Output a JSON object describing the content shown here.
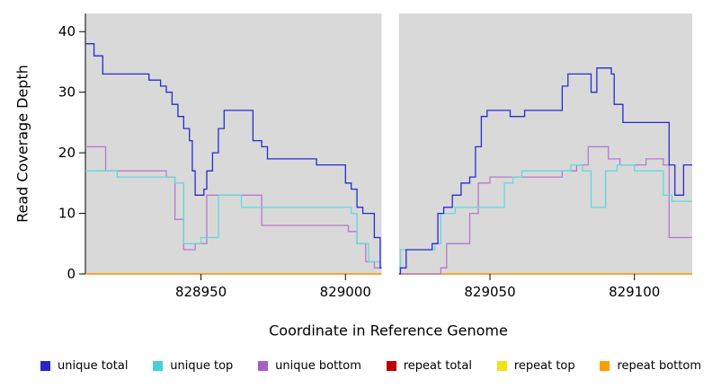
{
  "figure": {
    "y_axis_title": "Read Coverage Depth",
    "x_axis_title": "Coordinate in Reference Genome"
  },
  "legend": {
    "items": [
      {
        "label": "unique total",
        "color": "#2525cc"
      },
      {
        "label": "unique top",
        "color": "#45cfd6"
      },
      {
        "label": "unique bottom",
        "color": "#a35fc6"
      },
      {
        "label": "repeat total",
        "color": "#c00000"
      },
      {
        "label": "repeat top",
        "color": "#f2e211"
      },
      {
        "label": "repeat bottom",
        "color": "#ff9d00"
      }
    ]
  },
  "chart_data": {
    "type": "line",
    "title": "",
    "xlabel": "Coordinate in Reference Genome",
    "ylabel": "Read Coverage Depth",
    "xlim": [
      828910,
      829120
    ],
    "ylim": [
      0,
      43
    ],
    "x_ticks": [
      828950,
      829000,
      829050,
      829100
    ],
    "y_ticks": [
      0,
      10,
      20,
      30,
      40
    ],
    "plot_background": "#d9d9d9",
    "grid": false,
    "legend_position": "bottom",
    "step": "after",
    "gap_region": {
      "x0": 829012.5,
      "x1": 829018.5
    },
    "series": [
      {
        "name": "repeat total",
        "color": "#c00000",
        "points": [
          [
            828910,
            0
          ]
        ]
      },
      {
        "name": "repeat top",
        "color": "#f2e211",
        "points": [
          [
            828910,
            0
          ]
        ]
      },
      {
        "name": "repeat bottom",
        "color": "#ff9d00",
        "points": [
          [
            828910,
            0
          ]
        ]
      },
      {
        "name": "unique bottom",
        "color": "#b578cd",
        "points": [
          [
            828910,
            21
          ],
          [
            828917,
            17
          ],
          [
            828938,
            16
          ],
          [
            828941,
            9
          ],
          [
            828944,
            4
          ],
          [
            828948,
            5
          ],
          [
            828952,
            13
          ],
          [
            828971,
            8
          ],
          [
            829001,
            7
          ],
          [
            829004,
            5
          ],
          [
            829007,
            2
          ],
          [
            829010,
            1
          ],
          [
            829013,
            0
          ],
          [
            829033,
            1
          ],
          [
            829035,
            5
          ],
          [
            829043,
            10
          ],
          [
            829046,
            15
          ],
          [
            829050,
            16
          ],
          [
            829075,
            17
          ],
          [
            829080,
            18
          ],
          [
            829084,
            21
          ],
          [
            829091,
            19
          ],
          [
            829095,
            18
          ],
          [
            829104,
            19
          ],
          [
            829110,
            18
          ],
          [
            829112,
            6
          ]
        ]
      },
      {
        "name": "unique top",
        "color": "#63d8db",
        "points": [
          [
            828910,
            17
          ],
          [
            828921,
            16
          ],
          [
            828941,
            15
          ],
          [
            828944,
            5
          ],
          [
            828950,
            6
          ],
          [
            828956,
            13
          ],
          [
            828964,
            11
          ],
          [
            829002,
            10
          ],
          [
            829004,
            5
          ],
          [
            829008,
            2
          ],
          [
            829012,
            1
          ],
          [
            829013,
            0
          ],
          [
            829019,
            4
          ],
          [
            829031,
            5
          ],
          [
            829033,
            10
          ],
          [
            829038,
            11
          ],
          [
            829055,
            15
          ],
          [
            829058,
            16
          ],
          [
            829061,
            17
          ],
          [
            829078,
            18
          ],
          [
            829082,
            17
          ],
          [
            829085,
            11
          ],
          [
            829090,
            17
          ],
          [
            829094,
            18
          ],
          [
            829100,
            17
          ],
          [
            829110,
            13
          ],
          [
            829113,
            12
          ]
        ]
      },
      {
        "name": "unique total",
        "color": "#2a2ad1",
        "points": [
          [
            828910,
            38
          ],
          [
            828913,
            36
          ],
          [
            828916,
            33
          ],
          [
            828932,
            32
          ],
          [
            828936,
            31
          ],
          [
            828938,
            30
          ],
          [
            828940,
            28
          ],
          [
            828942,
            26
          ],
          [
            828944,
            24
          ],
          [
            828946,
            22
          ],
          [
            828947,
            17
          ],
          [
            828948,
            13
          ],
          [
            828951,
            14
          ],
          [
            828952,
            17
          ],
          [
            828954,
            20
          ],
          [
            828956,
            24
          ],
          [
            828958,
            27
          ],
          [
            828968,
            22
          ],
          [
            828971,
            21
          ],
          [
            828973,
            19
          ],
          [
            828990,
            18
          ],
          [
            829000,
            15
          ],
          [
            829002,
            14
          ],
          [
            829004,
            11
          ],
          [
            829006,
            10
          ],
          [
            829010,
            6
          ],
          [
            829012,
            1
          ],
          [
            829013,
            0
          ],
          [
            829019,
            1
          ],
          [
            829021,
            4
          ],
          [
            829030,
            5
          ],
          [
            829032,
            10
          ],
          [
            829034,
            11
          ],
          [
            829037,
            13
          ],
          [
            829040,
            15
          ],
          [
            829043,
            16
          ],
          [
            829045,
            21
          ],
          [
            829047,
            26
          ],
          [
            829049,
            27
          ],
          [
            829057,
            26
          ],
          [
            829062,
            27
          ],
          [
            829075,
            31
          ],
          [
            829077,
            33
          ],
          [
            829085,
            30
          ],
          [
            829087,
            34
          ],
          [
            829092,
            33
          ],
          [
            829093,
            28
          ],
          [
            829096,
            25
          ],
          [
            829112,
            18
          ],
          [
            829114,
            13
          ],
          [
            829117,
            18
          ]
        ]
      }
    ]
  }
}
